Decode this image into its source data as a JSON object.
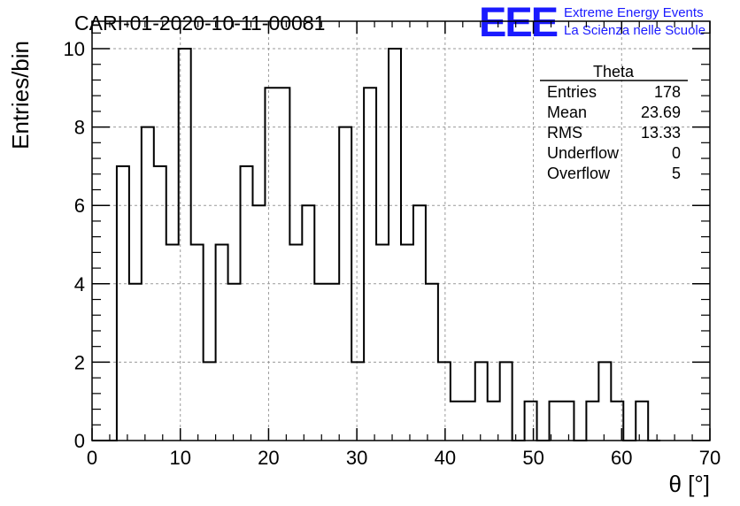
{
  "header": {
    "run_title": "CARI-01-2020-10-11-00081",
    "logo_mark": "EEE",
    "logo_line1": "Extreme Energy Events",
    "logo_line2": "La Scienza nelle Scuole"
  },
  "colors": {
    "logo": "#1a1aff",
    "grid": "#9a9a9a",
    "line": "#000000"
  },
  "stats_box": {
    "title": "Theta",
    "rows": [
      {
        "label": "Entries",
        "value": "178"
      },
      {
        "label": "Mean",
        "value": "23.69"
      },
      {
        "label": "RMS",
        "value": "13.33"
      },
      {
        "label": "Underflow",
        "value": "0"
      },
      {
        "label": "Overflow",
        "value": "5"
      }
    ]
  },
  "chart_data": {
    "type": "histogram",
    "xlabel": "θ [°]",
    "ylabel": "Entries/bin",
    "xlim": [
      0,
      70
    ],
    "ylim": [
      0,
      10.7
    ],
    "grid": true,
    "x_ticks": [
      0,
      10,
      20,
      30,
      40,
      50,
      60,
      70
    ],
    "y_ticks": [
      0,
      2,
      4,
      6,
      8,
      10
    ],
    "bin_width": 1.4,
    "bin_edges_start": 0,
    "values": [
      0,
      0,
      7,
      4,
      8,
      7,
      5,
      10,
      5,
      2,
      5,
      4,
      7,
      6,
      9,
      9,
      5,
      6,
      4,
      4,
      8,
      2,
      9,
      5,
      10,
      5,
      6,
      4,
      2,
      1,
      1,
      2,
      1,
      2,
      0,
      1,
      0,
      1,
      1,
      0,
      1,
      2,
      1,
      0,
      1,
      0
    ]
  }
}
